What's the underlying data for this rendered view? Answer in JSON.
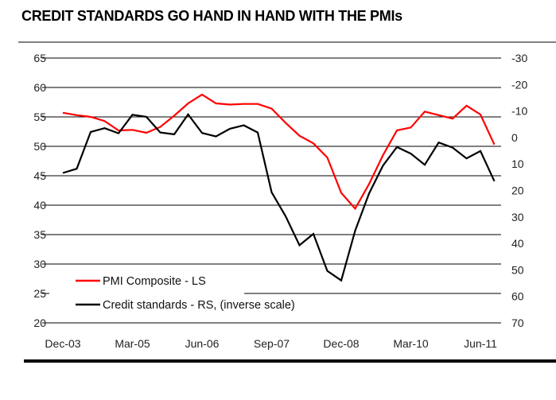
{
  "chart_data": {
    "type": "line",
    "title": "CREDIT STANDARDS GO HAND IN HAND WITH THE PMIs",
    "x_tick_labels": [
      "Dec-03",
      "Mar-05",
      "Jun-06",
      "Sep-07",
      "Dec-08",
      "Mar-10",
      "Jun-11"
    ],
    "x_start": "Dec-03",
    "x_frequency": "quarterly",
    "left_axis": {
      "ylim": [
        20,
        65
      ],
      "ticks": [
        65,
        60,
        55,
        50,
        45,
        40,
        35,
        30,
        25,
        20
      ]
    },
    "right_axis": {
      "ylim": [
        -30,
        70
      ],
      "inverted": true,
      "ticks": [
        -30,
        -20,
        -10,
        0,
        10,
        20,
        30,
        40,
        50,
        60,
        70
      ]
    },
    "grid": true,
    "legend_placement": "bottom-left",
    "series": [
      {
        "name": "PMI Composite - LS",
        "axis": "left",
        "color": "#ff0000",
        "values": [
          55.7,
          55.3,
          55.0,
          54.3,
          52.7,
          52.8,
          52.3,
          53.3,
          55.2,
          57.3,
          58.8,
          57.3,
          57.1,
          57.2,
          57.2,
          56.4,
          54.0,
          51.8,
          50.5,
          48.1,
          42.1,
          39.4,
          43.6,
          48.5,
          52.7,
          53.2,
          55.9,
          55.3,
          54.7,
          56.9,
          55.4,
          50.3
        ]
      },
      {
        "name": "Credit standards - RS, (inverse scale)",
        "axis": "right",
        "color": "#000000",
        "values": [
          13.4,
          11.8,
          -2.1,
          -3.5,
          -1.6,
          -8.6,
          -7.8,
          -1.9,
          -1.2,
          -8.7,
          -1.7,
          -0.4,
          -3.3,
          -4.6,
          -1.9,
          20.7,
          29.7,
          40.7,
          36.4,
          50.4,
          54.0,
          35.2,
          21.1,
          10.6,
          3.6,
          6.1,
          10.3,
          1.9,
          3.8,
          7.9,
          5.1,
          16.5
        ]
      }
    ]
  }
}
